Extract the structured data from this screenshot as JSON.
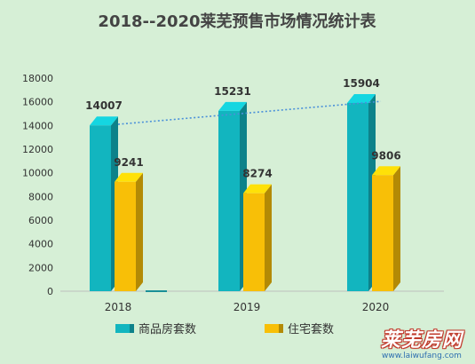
{
  "chart_data": {
    "type": "bar",
    "title": "2018--2020莱芜预售市场情况统计表",
    "categories": [
      "2018",
      "2019",
      "2020"
    ],
    "series": [
      {
        "name": "商品房套数",
        "values": [
          14007,
          15231,
          15904
        ],
        "color": "#12b5bf"
      },
      {
        "name": "住宅套数",
        "values": [
          9241,
          8274,
          9806
        ],
        "color": "#f8bf07"
      }
    ],
    "y_ticks": [
      0,
      2000,
      4000,
      6000,
      8000,
      10000,
      12000,
      14000,
      16000,
      18000
    ],
    "ylim": [
      0,
      18000
    ],
    "grid": false,
    "legend_position": "bottom",
    "trendline": {
      "series": "商品房套数",
      "style": "dotted",
      "color": "#4a90d9"
    }
  },
  "watermark": {
    "text": "莱芜房网",
    "url": "www.laiwufang.com"
  }
}
